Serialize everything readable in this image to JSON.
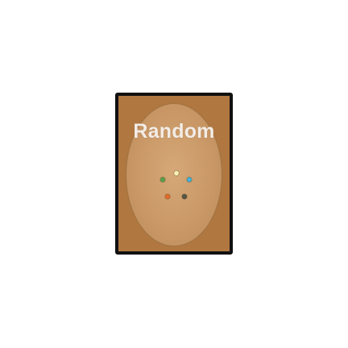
{
  "card": {
    "title": "Random",
    "frame_color": "#111111",
    "body_color": "#b07840",
    "oval_color": "#d6a878",
    "title_color": "#f3ece6",
    "mana_symbols": [
      {
        "name": "white-mana-icon",
        "color": "#f8f1b5"
      },
      {
        "name": "blue-mana-icon",
        "color": "#44b0d6"
      },
      {
        "name": "black-mana-icon",
        "color": "#555544"
      },
      {
        "name": "red-mana-icon",
        "color": "#e06a2a"
      },
      {
        "name": "green-mana-icon",
        "color": "#5aa04a"
      }
    ]
  }
}
